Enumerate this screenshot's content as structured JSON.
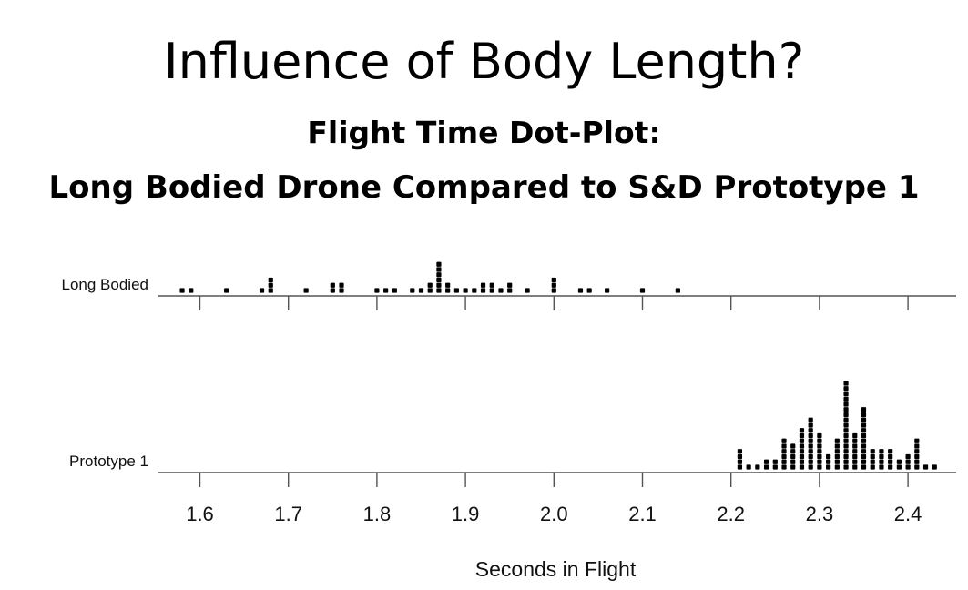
{
  "slide": {
    "title": "Influence of Body Length?",
    "chart_title_line1": "Flight Time Dot-Plot:",
    "chart_title_line2": "Long Bodied Drone Compared to S&D Prototype 1"
  },
  "chart_data": {
    "type": "scatter",
    "subtype": "dot-plot",
    "xlabel": "Seconds in Flight",
    "xlim": [
      1.55,
      2.45
    ],
    "xticks": [
      1.6,
      1.7,
      1.8,
      1.9,
      2.0,
      2.1,
      2.2,
      2.3,
      2.4
    ],
    "xtick_labels": [
      "1.6",
      "1.7",
      "1.8",
      "1.9",
      "2.0",
      "2.1",
      "2.2",
      "2.3",
      "2.4"
    ],
    "grid": false,
    "dot_color": "#000000",
    "series": [
      {
        "name": "Long Bodied",
        "points": [
          {
            "x": 1.58,
            "count": 1
          },
          {
            "x": 1.59,
            "count": 1
          },
          {
            "x": 1.63,
            "count": 1
          },
          {
            "x": 1.67,
            "count": 1
          },
          {
            "x": 1.68,
            "count": 3
          },
          {
            "x": 1.72,
            "count": 1
          },
          {
            "x": 1.75,
            "count": 2
          },
          {
            "x": 1.76,
            "count": 2
          },
          {
            "x": 1.8,
            "count": 1
          },
          {
            "x": 1.81,
            "count": 1
          },
          {
            "x": 1.82,
            "count": 1
          },
          {
            "x": 1.84,
            "count": 1
          },
          {
            "x": 1.85,
            "count": 1
          },
          {
            "x": 1.86,
            "count": 2
          },
          {
            "x": 1.87,
            "count": 6
          },
          {
            "x": 1.88,
            "count": 2
          },
          {
            "x": 1.89,
            "count": 1
          },
          {
            "x": 1.9,
            "count": 1
          },
          {
            "x": 1.91,
            "count": 1
          },
          {
            "x": 1.92,
            "count": 2
          },
          {
            "x": 1.93,
            "count": 2
          },
          {
            "x": 1.94,
            "count": 1
          },
          {
            "x": 1.95,
            "count": 2
          },
          {
            "x": 1.97,
            "count": 1
          },
          {
            "x": 2.0,
            "count": 3
          },
          {
            "x": 2.03,
            "count": 1
          },
          {
            "x": 2.04,
            "count": 1
          },
          {
            "x": 2.06,
            "count": 1
          },
          {
            "x": 2.1,
            "count": 1
          },
          {
            "x": 2.14,
            "count": 1
          }
        ]
      },
      {
        "name": "Prototype 1",
        "points": [
          {
            "x": 2.21,
            "count": 4
          },
          {
            "x": 2.22,
            "count": 1
          },
          {
            "x": 2.23,
            "count": 1
          },
          {
            "x": 2.24,
            "count": 2
          },
          {
            "x": 2.25,
            "count": 2
          },
          {
            "x": 2.26,
            "count": 6
          },
          {
            "x": 2.27,
            "count": 5
          },
          {
            "x": 2.28,
            "count": 8
          },
          {
            "x": 2.29,
            "count": 10
          },
          {
            "x": 2.3,
            "count": 7
          },
          {
            "x": 2.31,
            "count": 3
          },
          {
            "x": 2.32,
            "count": 6
          },
          {
            "x": 2.33,
            "count": 17
          },
          {
            "x": 2.34,
            "count": 7
          },
          {
            "x": 2.35,
            "count": 12
          },
          {
            "x": 2.36,
            "count": 4
          },
          {
            "x": 2.37,
            "count": 4
          },
          {
            "x": 2.38,
            "count": 4
          },
          {
            "x": 2.39,
            "count": 2
          },
          {
            "x": 2.4,
            "count": 3
          },
          {
            "x": 2.41,
            "count": 6
          },
          {
            "x": 2.42,
            "count": 1
          },
          {
            "x": 2.43,
            "count": 1
          }
        ]
      }
    ]
  }
}
